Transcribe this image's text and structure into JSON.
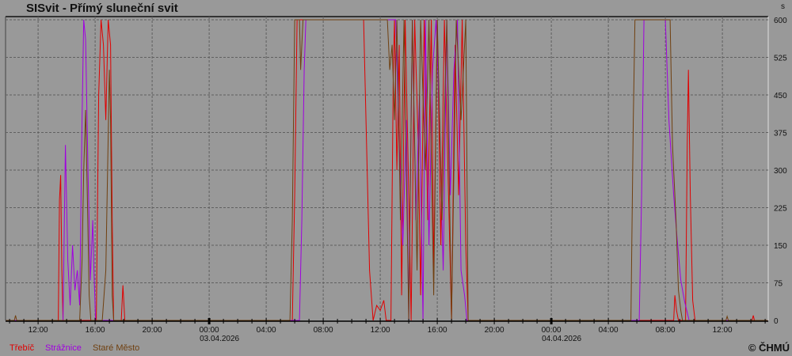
{
  "chart_data": {
    "type": "line",
    "title": "SISvit - Přímý sluneční svit",
    "ylabel": "s",
    "ylim": [
      0,
      600
    ],
    "yticks": [
      0,
      75,
      150,
      225,
      300,
      375,
      450,
      525,
      600
    ],
    "xlim": [
      "2026-04-02T09:43",
      "2026-04-04T15:13"
    ],
    "xticks": [
      {
        "time": "2026-04-02T12:00",
        "label": "12:00",
        "date": ""
      },
      {
        "time": "2026-04-02T16:00",
        "label": "16:00",
        "date": ""
      },
      {
        "time": "2026-04-02T20:00",
        "label": "20:00",
        "date": ""
      },
      {
        "time": "2026-04-03T00:00",
        "label": "00:00",
        "date": "03.04.2026"
      },
      {
        "time": "2026-04-03T04:00",
        "label": "04:00",
        "date": ""
      },
      {
        "time": "2026-04-03T08:00",
        "label": "08:00",
        "date": ""
      },
      {
        "time": "2026-04-03T12:00",
        "label": "12:00",
        "date": ""
      },
      {
        "time": "2026-04-03T16:00",
        "label": "16:00",
        "date": ""
      },
      {
        "time": "2026-04-03T20:00",
        "label": "20:00",
        "date": ""
      },
      {
        "time": "2026-04-04T00:00",
        "label": "00:00",
        "date": "04.04.2026"
      },
      {
        "time": "2026-04-04T04:00",
        "label": "04:00",
        "date": ""
      },
      {
        "time": "2026-04-04T08:00",
        "label": "08:00",
        "date": ""
      },
      {
        "time": "2026-04-04T12:00",
        "label": "12:00",
        "date": ""
      }
    ],
    "grid": true,
    "legend_position": "bottom-left",
    "series": [
      {
        "name": "Třebíč",
        "color": "#e00000",
        "points": [
          [
            "2026-04-02T09:45",
            0
          ],
          [
            "2026-04-02T13:25",
            0
          ],
          [
            "2026-04-02T13:30",
            240
          ],
          [
            "2026-04-02T13:35",
            290
          ],
          [
            "2026-04-02T13:40",
            100
          ],
          [
            "2026-04-02T13:45",
            0
          ],
          [
            "2026-04-02T16:05",
            0
          ],
          [
            "2026-04-02T16:15",
            450
          ],
          [
            "2026-04-02T16:25",
            600
          ],
          [
            "2026-04-02T16:35",
            550
          ],
          [
            "2026-04-02T16:45",
            400
          ],
          [
            "2026-04-02T16:55",
            600
          ],
          [
            "2026-04-02T17:05",
            550
          ],
          [
            "2026-04-02T17:12",
            200
          ],
          [
            "2026-04-02T17:18",
            0
          ],
          [
            "2026-04-02T17:50",
            0
          ],
          [
            "2026-04-02T17:57",
            70
          ],
          [
            "2026-04-02T18:05",
            0
          ],
          [
            "2026-04-03T05:50",
            0
          ],
          [
            "2026-04-03T06:00",
            250
          ],
          [
            "2026-04-03T06:10",
            600
          ],
          [
            "2026-04-03T10:50",
            600
          ],
          [
            "2026-04-03T11:00",
            400
          ],
          [
            "2026-04-03T11:15",
            100
          ],
          [
            "2026-04-03T11:30",
            0
          ],
          [
            "2026-04-03T11:45",
            30
          ],
          [
            "2026-04-03T12:00",
            20
          ],
          [
            "2026-04-03T12:15",
            40
          ],
          [
            "2026-04-03T12:25",
            0
          ],
          [
            "2026-04-03T12:45",
            0
          ],
          [
            "2026-04-03T12:55",
            500
          ],
          [
            "2026-04-03T13:00",
            600
          ],
          [
            "2026-04-03T13:10",
            300
          ],
          [
            "2026-04-03T13:20",
            550
          ],
          [
            "2026-04-03T13:30",
            50
          ],
          [
            "2026-04-03T13:45",
            600
          ],
          [
            "2026-04-03T14:00",
            250
          ],
          [
            "2026-04-03T14:10",
            0
          ],
          [
            "2026-04-03T14:25",
            600
          ],
          [
            "2026-04-03T14:40",
            350
          ],
          [
            "2026-04-03T14:50",
            50
          ],
          [
            "2026-04-03T15:05",
            600
          ],
          [
            "2026-04-03T15:20",
            200
          ],
          [
            "2026-04-03T15:35",
            600
          ],
          [
            "2026-04-03T15:45",
            100
          ],
          [
            "2026-04-03T16:00",
            600
          ],
          [
            "2026-04-03T16:15",
            150
          ],
          [
            "2026-04-03T16:30",
            600
          ],
          [
            "2026-04-03T16:45",
            300
          ],
          [
            "2026-04-03T17:00",
            0
          ],
          [
            "2026-04-03T17:15",
            550
          ],
          [
            "2026-04-03T17:30",
            250
          ],
          [
            "2026-04-03T17:45",
            600
          ],
          [
            "2026-04-03T18:00",
            150
          ],
          [
            "2026-04-03T18:10",
            0
          ],
          [
            "2026-04-04T08:35",
            0
          ],
          [
            "2026-04-04T08:40",
            50
          ],
          [
            "2026-04-04T08:47",
            20
          ],
          [
            "2026-04-04T08:55",
            0
          ],
          [
            "2026-04-04T09:25",
            0
          ],
          [
            "2026-04-04T09:32",
            350
          ],
          [
            "2026-04-04T09:37",
            500
          ],
          [
            "2026-04-04T09:45",
            250
          ],
          [
            "2026-04-04T09:55",
            40
          ],
          [
            "2026-04-04T10:05",
            0
          ],
          [
            "2026-04-04T14:05",
            0
          ],
          [
            "2026-04-04T14:10",
            10
          ],
          [
            "2026-04-04T14:15",
            0
          ],
          [
            "2026-04-04T15:10",
            0
          ]
        ]
      },
      {
        "name": "Strážnice",
        "color": "#a000e0",
        "points": [
          [
            "2026-04-02T09:45",
            0
          ],
          [
            "2026-04-02T13:45",
            0
          ],
          [
            "2026-04-02T13:50",
            180
          ],
          [
            "2026-04-02T13:55",
            350
          ],
          [
            "2026-04-02T14:05",
            120
          ],
          [
            "2026-04-02T14:15",
            30
          ],
          [
            "2026-04-02T14:25",
            150
          ],
          [
            "2026-04-02T14:35",
            60
          ],
          [
            "2026-04-02T14:45",
            100
          ],
          [
            "2026-04-02T14:55",
            30
          ],
          [
            "2026-04-02T15:05",
            400
          ],
          [
            "2026-04-02T15:12",
            600
          ],
          [
            "2026-04-02T15:20",
            560
          ],
          [
            "2026-04-02T15:30",
            300
          ],
          [
            "2026-04-02T15:40",
            80
          ],
          [
            "2026-04-02T15:50",
            200
          ],
          [
            "2026-04-02T15:55",
            100
          ],
          [
            "2026-04-02T16:02",
            0
          ],
          [
            "2026-04-03T06:20",
            0
          ],
          [
            "2026-04-03T06:30",
            200
          ],
          [
            "2026-04-03T06:40",
            500
          ],
          [
            "2026-04-03T06:47",
            600
          ],
          [
            "2026-04-03T13:05",
            600
          ],
          [
            "2026-04-03T13:20",
            350
          ],
          [
            "2026-04-03T13:35",
            150
          ],
          [
            "2026-04-03T13:50",
            400
          ],
          [
            "2026-04-03T14:00",
            0
          ],
          [
            "2026-04-03T14:15",
            600
          ],
          [
            "2026-04-03T14:30",
            200
          ],
          [
            "2026-04-03T14:45",
            450
          ],
          [
            "2026-04-03T15:00",
            0
          ],
          [
            "2026-04-03T15:10",
            600
          ],
          [
            "2026-04-03T15:25",
            150
          ],
          [
            "2026-04-03T15:40",
            500
          ],
          [
            "2026-04-03T15:55",
            600
          ],
          [
            "2026-04-03T16:10",
            400
          ],
          [
            "2026-04-03T16:25",
            100
          ],
          [
            "2026-04-03T16:40",
            600
          ],
          [
            "2026-04-03T16:55",
            250
          ],
          [
            "2026-04-03T17:10",
            500
          ],
          [
            "2026-04-03T17:25",
            600
          ],
          [
            "2026-04-03T17:40",
            100
          ],
          [
            "2026-04-03T17:55",
            50
          ],
          [
            "2026-04-03T18:05",
            0
          ],
          [
            "2026-04-04T06:10",
            0
          ],
          [
            "2026-04-04T06:20",
            250
          ],
          [
            "2026-04-04T06:30",
            600
          ],
          [
            "2026-04-04T08:00",
            600
          ],
          [
            "2026-04-04T08:15",
            400
          ],
          [
            "2026-04-04T08:35",
            250
          ],
          [
            "2026-04-04T08:50",
            160
          ],
          [
            "2026-04-04T09:05",
            80
          ],
          [
            "2026-04-04T09:20",
            40
          ],
          [
            "2026-04-04T09:35",
            10
          ],
          [
            "2026-04-04T09:40",
            0
          ],
          [
            "2026-04-04T15:10",
            0
          ]
        ]
      },
      {
        "name": "Staré Město",
        "color": "#704010",
        "points": [
          [
            "2026-04-02T09:45",
            0
          ],
          [
            "2026-04-02T10:20",
            0
          ],
          [
            "2026-04-02T10:25",
            10
          ],
          [
            "2026-04-02T10:30",
            0
          ],
          [
            "2026-04-02T14:55",
            0
          ],
          [
            "2026-04-02T15:05",
            120
          ],
          [
            "2026-04-02T15:12",
            300
          ],
          [
            "2026-04-02T15:20",
            420
          ],
          [
            "2026-04-02T15:28",
            230
          ],
          [
            "2026-04-02T15:35",
            50
          ],
          [
            "2026-04-02T15:42",
            0
          ],
          [
            "2026-04-02T16:30",
            0
          ],
          [
            "2026-04-02T16:45",
            100
          ],
          [
            "2026-04-02T17:00",
            500
          ],
          [
            "2026-04-02T17:05",
            400
          ],
          [
            "2026-04-02T17:12",
            50
          ],
          [
            "2026-04-02T17:18",
            0
          ],
          [
            "2026-04-03T05:40",
            0
          ],
          [
            "2026-04-03T05:50",
            200
          ],
          [
            "2026-04-03T06:00",
            600
          ],
          [
            "2026-04-03T06:20",
            600
          ],
          [
            "2026-04-03T06:25",
            500
          ],
          [
            "2026-04-03T06:35",
            600
          ],
          [
            "2026-04-03T12:30",
            600
          ],
          [
            "2026-04-03T12:40",
            500
          ],
          [
            "2026-04-03T12:50",
            550
          ],
          [
            "2026-04-03T13:00",
            400
          ],
          [
            "2026-04-03T13:10",
            600
          ],
          [
            "2026-04-03T13:25",
            200
          ],
          [
            "2026-04-03T13:40",
            600
          ],
          [
            "2026-04-03T14:00",
            0
          ],
          [
            "2026-04-03T14:15",
            600
          ],
          [
            "2026-04-03T14:35",
            100
          ],
          [
            "2026-04-03T14:50",
            600
          ],
          [
            "2026-04-03T15:10",
            300
          ],
          [
            "2026-04-03T15:25",
            600
          ],
          [
            "2026-04-03T15:45",
            50
          ],
          [
            "2026-04-03T16:00",
            600
          ],
          [
            "2026-04-03T16:20",
            200
          ],
          [
            "2026-04-03T16:40",
            600
          ],
          [
            "2026-04-03T17:00",
            0
          ],
          [
            "2026-04-03T17:20",
            600
          ],
          [
            "2026-04-03T17:40",
            400
          ],
          [
            "2026-04-03T18:00",
            600
          ],
          [
            "2026-04-03T18:10",
            0
          ],
          [
            "2026-04-04T05:35",
            0
          ],
          [
            "2026-04-04T05:45",
            400
          ],
          [
            "2026-04-04T05:52",
            600
          ],
          [
            "2026-04-04T08:20",
            600
          ],
          [
            "2026-04-04T08:30",
            350
          ],
          [
            "2026-04-04T08:45",
            200
          ],
          [
            "2026-04-04T08:55",
            60
          ],
          [
            "2026-04-04T09:05",
            20
          ],
          [
            "2026-04-04T09:12",
            0
          ],
          [
            "2026-04-04T12:15",
            0
          ],
          [
            "2026-04-04T12:20",
            8
          ],
          [
            "2026-04-04T12:25",
            0
          ],
          [
            "2026-04-04T15:10",
            0
          ]
        ]
      }
    ]
  },
  "copyright": "© ČHMÚ"
}
